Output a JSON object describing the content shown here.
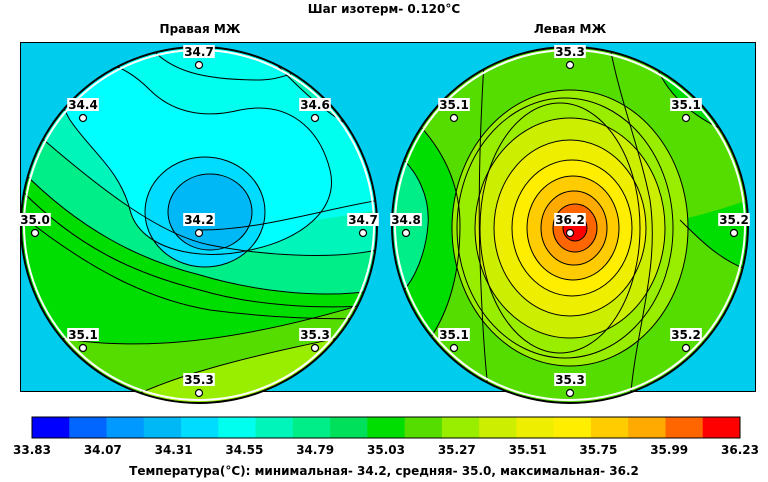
{
  "title": "Шаг изотерм- 0.120°C",
  "chart_data": {
    "type": "heatmap",
    "panels": [
      {
        "name": "Правая МЖ",
        "points": [
          {
            "label": "34.7",
            "value": 34.7
          },
          {
            "label": "34.4",
            "value": 34.4
          },
          {
            "label": "34.6",
            "value": 34.6
          },
          {
            "label": "35.0",
            "value": 35.0
          },
          {
            "label": "34.2",
            "value": 34.2
          },
          {
            "label": "34.7",
            "value": 34.7
          },
          {
            "label": "35.1",
            "value": 35.1
          },
          {
            "label": "35.3",
            "value": 35.3
          },
          {
            "label": "35.3",
            "value": 35.3
          }
        ]
      },
      {
        "name": "Левая МЖ",
        "points": [
          {
            "label": "35.3",
            "value": 35.3
          },
          {
            "label": "35.1",
            "value": 35.1
          },
          {
            "label": "35.1",
            "value": 35.1
          },
          {
            "label": "34.8",
            "value": 34.8
          },
          {
            "label": "36.2",
            "value": 36.2
          },
          {
            "label": "35.2",
            "value": 35.2
          },
          {
            "label": "35.1",
            "value": 35.1
          },
          {
            "label": "35.2",
            "value": 35.2
          },
          {
            "label": "35.3",
            "value": 35.3
          }
        ]
      }
    ],
    "colorbar": {
      "ticks": [
        "33.83",
        "34.07",
        "34.31",
        "34.55",
        "34.79",
        "35.03",
        "35.27",
        "35.51",
        "35.75",
        "35.99",
        "36.23"
      ],
      "colors": [
        "#0000ff",
        "#0066ff",
        "#0099ff",
        "#00b8f5",
        "#00dcff",
        "#00ffee",
        "#00f5bb",
        "#00ee88",
        "#00e05a",
        "#00dd00",
        "#55dd00",
        "#99ee00",
        "#ccee00",
        "#eeee00",
        "#ffee00",
        "#ffcc00",
        "#ffaa00",
        "#ff6600",
        "#ff0000"
      ]
    }
  },
  "footer": "Температура(°С): минимальная-  34.2,  средняя-  35.0,  максимальная-  36.2"
}
